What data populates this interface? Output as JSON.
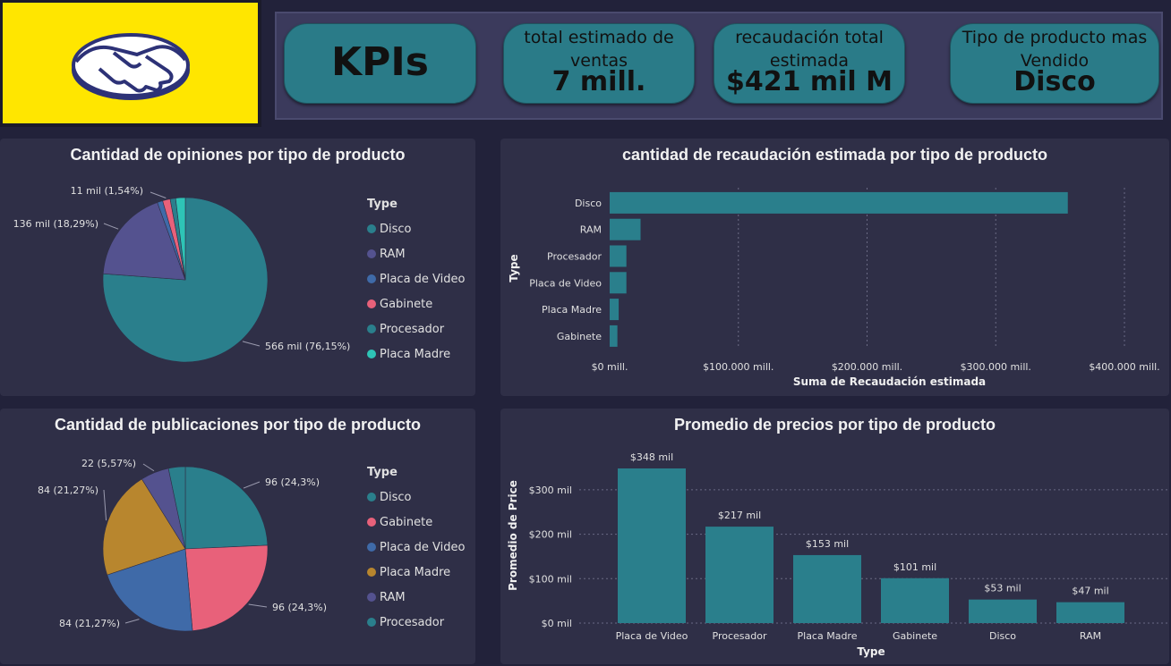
{
  "kpis": {
    "title": "KPIs",
    "ventas": {
      "label": "total estimado de ventas",
      "value": "7 mill."
    },
    "recaudacion": {
      "label": "recaudación total estimada",
      "value": "$421 mil M"
    },
    "tipo": {
      "label": "Tipo de producto mas Vendido",
      "value": "Disco"
    }
  },
  "colors": {
    "teal": "#2a7f8c",
    "indigo": "#54528f",
    "blue": "#3f6aa8",
    "pink": "#e8617a",
    "gold": "#b8862e",
    "aqua": "#2ec4b6"
  },
  "chart_data": [
    {
      "type": "pie",
      "title": "Cantidad de opiniones por tipo de producto",
      "legend_title": "Type",
      "categories": [
        "Disco",
        "RAM",
        "Placa de Video",
        "Gabinete",
        "Procesador",
        "Placa Madre"
      ],
      "values": [
        566,
        136,
        8,
        11,
        8,
        14
      ],
      "data_labels": [
        {
          "category": "Disco",
          "text": "566 mil (76,15%)"
        },
        {
          "category": "RAM",
          "text": "136 mil (18,29%)"
        },
        {
          "category": "Gabinete",
          "text": "11 mil (1,54%)"
        }
      ],
      "colors": [
        "#2a7f8c",
        "#54528f",
        "#3f6aa8",
        "#e8617a",
        "#2a7f8c",
        "#2ec4b6"
      ]
    },
    {
      "type": "bar",
      "orientation": "horizontal",
      "title": "cantidad de recaudación estimada por tipo de producto",
      "categories": [
        "Disco",
        "RAM",
        "Procesador",
        "Placa de Video",
        "Placa Madre",
        "Gabinete"
      ],
      "values": [
        356000,
        24000,
        13000,
        13000,
        7000,
        6000
      ],
      "xlabel": "Suma de Recaudación estimada",
      "ylabel": "Type",
      "xlim": [
        0,
        400000
      ],
      "ticks": [
        0,
        100000,
        200000,
        300000,
        400000
      ],
      "tick_labels": [
        "$0 mill.",
        "$100.000 mill.",
        "$200.000 mill.",
        "$300.000 mill.",
        "$400.000 mill."
      ],
      "grid": true
    },
    {
      "type": "pie",
      "title": "Cantidad de publicaciones por tipo de producto",
      "legend_title": "Type",
      "categories": [
        "Disco",
        "Gabinete",
        "Placa de Video",
        "Placa Madre",
        "RAM",
        "Procesador"
      ],
      "values": [
        96,
        96,
        84,
        84,
        22,
        13
      ],
      "data_labels": [
        {
          "category": "Disco",
          "text": "96 (24,3%)"
        },
        {
          "category": "Gabinete",
          "text": "96 (24,3%)"
        },
        {
          "category": "Placa de Video",
          "text": "84 (21,27%)"
        },
        {
          "category": "Placa Madre",
          "text": "84 (21,27%)"
        },
        {
          "category": "RAM",
          "text": "22 (5,57%)"
        }
      ],
      "colors": [
        "#2a7f8c",
        "#e8617a",
        "#3f6aa8",
        "#b8862e",
        "#54528f",
        "#2a7f8c"
      ]
    },
    {
      "type": "bar",
      "title": "Promedio de precios por tipo de producto",
      "categories": [
        "Placa de Video",
        "Procesador",
        "Placa Madre",
        "Gabinete",
        "Disco",
        "RAM"
      ],
      "values": [
        348,
        217,
        153,
        101,
        53,
        47
      ],
      "data_labels": [
        "$348 mil",
        "$217 mil",
        "$153 mil",
        "$101 mil",
        "$53 mil",
        "$47 mil"
      ],
      "xlabel": "Type",
      "ylabel": "Promedio de Price",
      "ylim": [
        0,
        350
      ],
      "ticks": [
        0,
        100,
        200,
        300
      ],
      "tick_labels": [
        "$0 mil",
        "$100 mil",
        "$200 mil",
        "$300 mil"
      ],
      "grid": true
    }
  ]
}
